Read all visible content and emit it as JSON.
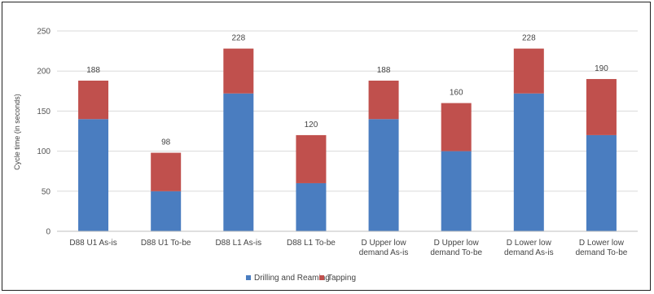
{
  "chart_data": {
    "type": "bar",
    "stacked": true,
    "title": "",
    "xlabel": "",
    "ylabel": "Cycle time (in seconds)",
    "ylim": [
      0,
      250
    ],
    "yticks": [
      0,
      50,
      100,
      150,
      200,
      250
    ],
    "grid": "horizontal",
    "legend_position": "bottom",
    "categories": [
      [
        "D88 U1 As-is"
      ],
      [
        "D88 U1 To-be"
      ],
      [
        "D88 L1 As-is"
      ],
      [
        "D88 L1 To-be"
      ],
      [
        "D Upper low",
        "demand As-is"
      ],
      [
        "D Upper low",
        "demand To-be"
      ],
      [
        "D Lower low",
        "demand As-is"
      ],
      [
        "D Lower low",
        "demand To-be"
      ]
    ],
    "series": [
      {
        "name": "Drilling and Reaming",
        "color": "#4a7dc0",
        "values": [
          140,
          50,
          172,
          60,
          140,
          100,
          172,
          120
        ]
      },
      {
        "name": "Tapping",
        "color": "#c0504d",
        "values": [
          48,
          48,
          56,
          60,
          48,
          60,
          56,
          70
        ]
      }
    ],
    "totals": [
      188,
      98,
      228,
      120,
      188,
      160,
      228,
      190
    ]
  }
}
